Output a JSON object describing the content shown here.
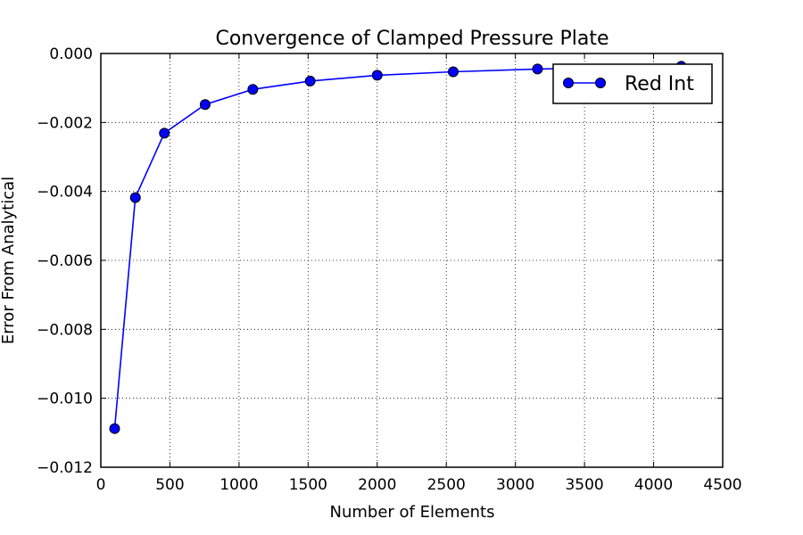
{
  "chart_data": {
    "type": "line",
    "title": "Convergence of Clamped Pressure Plate",
    "xlabel": "Number of Elements",
    "ylabel": "Error From Analytical",
    "xlim": [
      0,
      4500
    ],
    "ylim": [
      -0.012,
      0.0
    ],
    "xticks": [
      0,
      500,
      1000,
      1500,
      2000,
      2500,
      3000,
      3500,
      4000,
      4500
    ],
    "xtick_labels": [
      "0",
      "500",
      "1000",
      "1500",
      "2000",
      "2500",
      "3000",
      "3500",
      "4000",
      "4500"
    ],
    "yticks": [
      0.0,
      -0.002,
      -0.004,
      -0.006,
      -0.008,
      -0.01,
      -0.012
    ],
    "ytick_labels": [
      "0.000",
      "−0.002",
      "−0.004",
      "−0.006",
      "−0.008",
      "−0.010",
      "−0.012"
    ],
    "grid": true,
    "legend": "top-right",
    "series": [
      {
        "name": "Red Int",
        "color": "#0000ff",
        "marker": "circle",
        "x": [
          100,
          250,
          460,
          755,
          1100,
          1515,
          2000,
          2550,
          3160,
          4200
        ],
        "y": [
          -0.01088,
          -0.00418,
          -0.00231,
          -0.00148,
          -0.00104,
          -0.0008,
          -0.00063,
          -0.00053,
          -0.00045,
          -0.00037
        ]
      }
    ]
  }
}
